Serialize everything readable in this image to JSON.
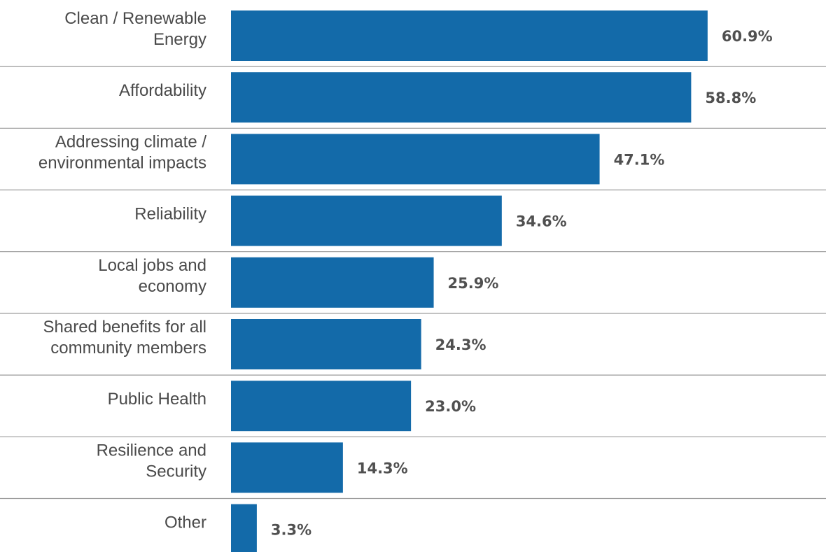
{
  "chart_data": {
    "type": "bar",
    "orientation": "horizontal",
    "categories": [
      [
        "Clean / Renewable",
        "Energy"
      ],
      [
        "Affordability"
      ],
      [
        "Addressing climate /",
        "environmental impacts"
      ],
      [
        "Reliability"
      ],
      [
        "Local jobs and",
        "economy"
      ],
      [
        "Shared benefits for all",
        "community members"
      ],
      [
        "Public Health"
      ],
      [
        "Resilience and",
        "Security"
      ],
      [
        "Other"
      ]
    ],
    "values": [
      60.9,
      58.8,
      47.1,
      34.6,
      25.9,
      24.3,
      23.0,
      14.3,
      3.3
    ],
    "value_labels": [
      "60.9%",
      "58.8%",
      "47.1%",
      "34.6%",
      "25.9%",
      "24.3%",
      "23.0%",
      "14.3%",
      "3.3%"
    ],
    "unit": "%",
    "xlim": [
      0,
      100
    ],
    "grid": false,
    "legend": "none",
    "bar_color": "#136aa9",
    "separator_color": "#9a9a9a"
  }
}
